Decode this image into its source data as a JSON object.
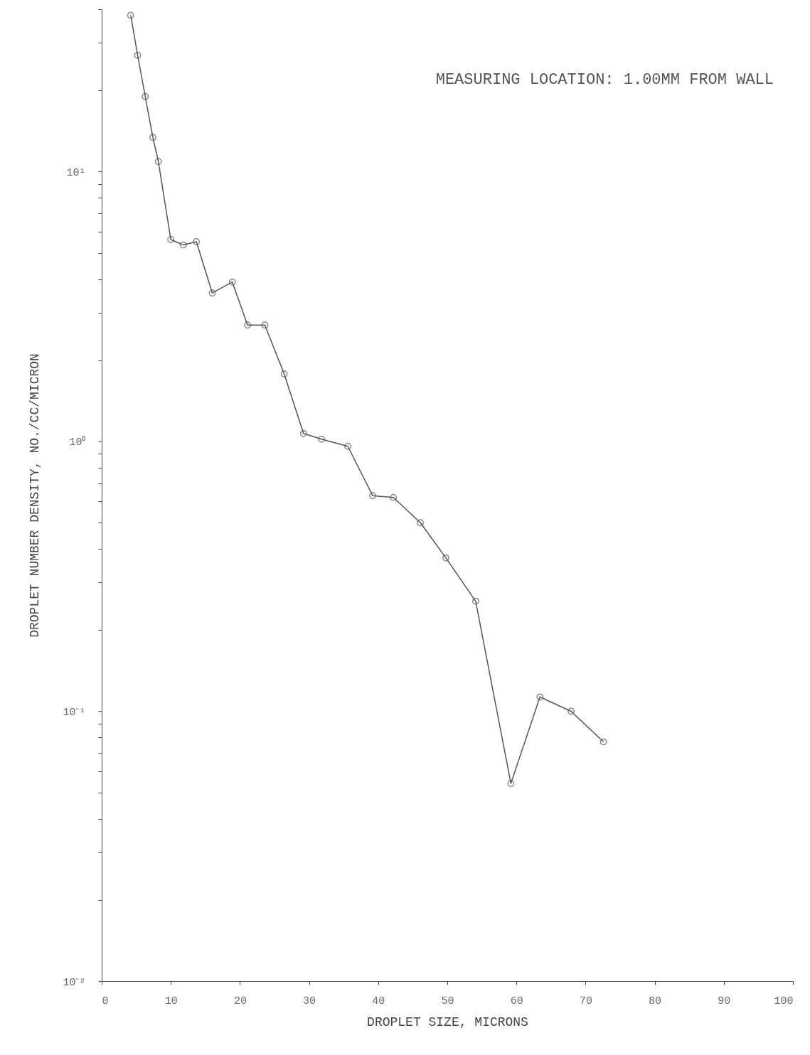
{
  "chart_data": {
    "type": "line",
    "xlabel": "DROPLET SIZE, MICRONS",
    "ylabel": "DROPLET NUMBER DENSITY, NO./CC/MICRON",
    "annotations": [
      "MEASURING LOCATION: 1.00MM FROM WALL"
    ],
    "x": [
      4.2,
      5.2,
      6.3,
      7.4,
      8.2,
      10.0,
      11.8,
      13.7,
      16.0,
      18.9,
      21.1,
      23.6,
      26.4,
      29.2,
      31.8,
      35.6,
      39.2,
      42.2,
      46.1,
      49.8,
      54.1,
      59.2,
      63.4,
      67.9,
      72.6
    ],
    "series": [
      {
        "color": "#555555",
        "values": [
          38,
          27,
          19,
          13.4,
          10.9,
          5.6,
          5.35,
          5.5,
          3.55,
          3.9,
          2.7,
          2.7,
          1.78,
          1.07,
          1.02,
          0.96,
          0.63,
          0.62,
          0.5,
          0.37,
          0.256,
          0.054,
          0.113,
          0.1,
          0.077
        ]
      }
    ],
    "log": "y",
    "marker": "circle",
    "line_style": "solid",
    "grid": false,
    "xlim": [
      0,
      100
    ],
    "xticks": [
      0,
      10,
      20,
      30,
      40,
      50,
      60,
      70,
      80,
      90,
      100
    ],
    "ylim": [
      0.01,
      40
    ],
    "yticks": [
      {
        "value": 0.01,
        "label": "10⁻²"
      },
      {
        "value": 0.02,
        "label": null
      },
      {
        "value": 0.03,
        "label": null
      },
      {
        "value": 0.04,
        "label": null
      },
      {
        "value": 0.05,
        "label": null
      },
      {
        "value": 0.06,
        "label": null
      },
      {
        "value": 0.07,
        "label": null
      },
      {
        "value": 0.08,
        "label": null
      },
      {
        "value": 0.09,
        "label": null
      },
      {
        "value": 0.1,
        "label": "10⁻¹"
      },
      {
        "value": 0.2,
        "label": null
      },
      {
        "value": 0.3,
        "label": null
      },
      {
        "value": 0.4,
        "label": null
      },
      {
        "value": 0.5,
        "label": null
      },
      {
        "value": 0.6,
        "label": null
      },
      {
        "value": 0.7,
        "label": null
      },
      {
        "value": 0.8,
        "label": null
      },
      {
        "value": 0.9,
        "label": null
      },
      {
        "value": 1,
        "label": "10⁰"
      },
      {
        "value": 2,
        "label": null
      },
      {
        "value": 3,
        "label": null
      },
      {
        "value": 4,
        "label": null
      },
      {
        "value": 5,
        "label": null
      },
      {
        "value": 6,
        "label": null
      },
      {
        "value": 7,
        "label": null
      },
      {
        "value": 8,
        "label": null
      },
      {
        "value": 9,
        "label": null
      },
      {
        "value": 10,
        "label": "10¹"
      },
      {
        "value": 20,
        "label": null
      },
      {
        "value": 30,
        "label": null
      },
      {
        "value": 40,
        "label": null
      }
    ]
  }
}
